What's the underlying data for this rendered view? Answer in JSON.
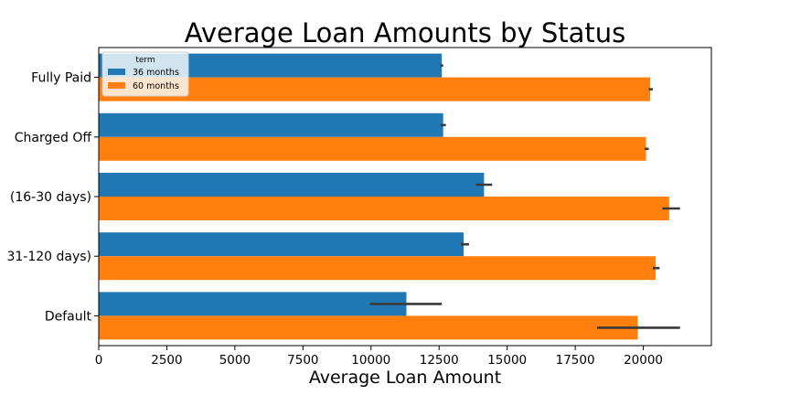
{
  "chart_data": {
    "type": "bar",
    "orientation": "horizontal",
    "title": "Average Loan Amounts by Status",
    "xlabel": "Average Loan Amount",
    "ylabel": "",
    "xlim": [
      0,
      22500
    ],
    "xticks": [
      0,
      2500,
      5000,
      7500,
      10000,
      12500,
      15000,
      17500,
      20000
    ],
    "categories": [
      "Fully Paid",
      "Charged Off",
      "(16-30 days)",
      "31-120 days)",
      "Default"
    ],
    "legend": {
      "title": "term",
      "position": "top-left"
    },
    "series": [
      {
        "name": "36 months",
        "color": "#1f77b4",
        "values": [
          12600,
          12650,
          14150,
          13400,
          11300
        ],
        "ci": [
          [
            12550,
            12650
          ],
          [
            12550,
            12750
          ],
          [
            13850,
            14450
          ],
          [
            13300,
            13600
          ],
          [
            9950,
            12600
          ]
        ]
      },
      {
        "name": "60 months",
        "color": "#ff7f0e",
        "values": [
          20250,
          20100,
          20950,
          20450,
          19800
        ],
        "ci": [
          [
            20200,
            20350
          ],
          [
            20050,
            20200
          ],
          [
            20700,
            21350
          ],
          [
            20350,
            20600
          ],
          [
            18300,
            21350
          ]
        ]
      }
    ],
    "errorbar_color": "#3a3a3a",
    "grid": false
  }
}
